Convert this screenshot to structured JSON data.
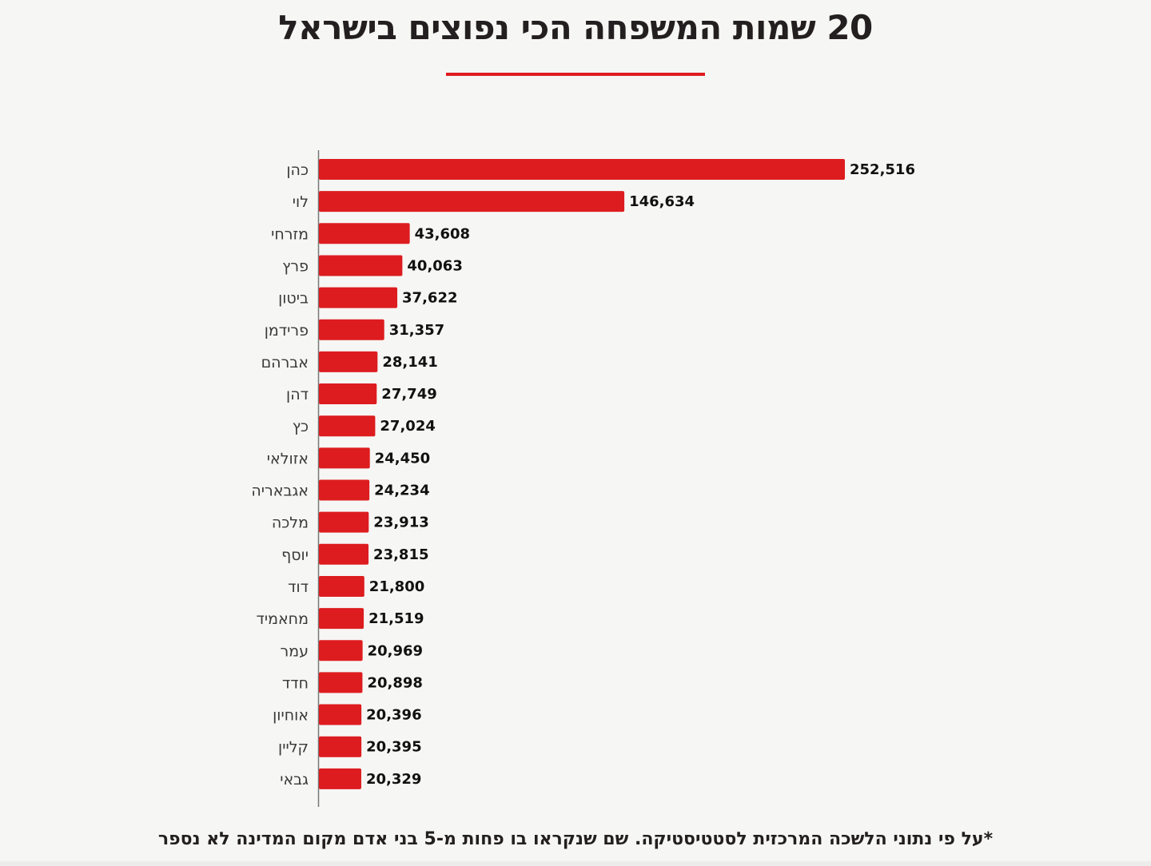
{
  "title": "20 שמות המשפחה הכי נפוצים בישראל",
  "footnote": "*על פי נתוני הלשכה המרכזית לסטטיסטיקה. שם שנקראו בו פחות מ-5 בני אדם מקום המדינה לא נספר",
  "colors": {
    "bar": "#dd1c1f",
    "accent_rule": "#dd1c1f",
    "axis": "#777777"
  },
  "chart_data": {
    "type": "bar",
    "orientation": "horizontal",
    "title": "20 שמות המשפחה הכי נפוצים בישראל",
    "xlabel": "",
    "ylabel": "",
    "xlim": [
      0,
      252516
    ],
    "grid": false,
    "legend": "none",
    "categories": [
      "כהן",
      "לוי",
      "מזרחי",
      "פרץ",
      "ביטון",
      "פרידמן",
      "אברהם",
      "דהן",
      "כץ",
      "אזולאי",
      "אגבאריה",
      "מלכה",
      "יוסף",
      "דוד",
      "מחאמיד",
      "עמר",
      "חדד",
      "אוחיון",
      "קליין",
      "גבאי"
    ],
    "values": [
      252516,
      146634,
      43608,
      40063,
      37622,
      31357,
      28141,
      27749,
      27024,
      24450,
      24234,
      23913,
      23815,
      21800,
      21519,
      20969,
      20898,
      20396,
      20395,
      20329
    ],
    "value_labels": [
      "252,516",
      "146,634",
      "43,608",
      "40,063",
      "37,622",
      "31,357",
      "28,141",
      "27,749",
      "27,024",
      "24,450",
      "24,234",
      "23,913",
      "23,815",
      "21,800",
      "21,519",
      "20,969",
      "20,898",
      "20,396",
      "20,395",
      "20,329"
    ]
  }
}
